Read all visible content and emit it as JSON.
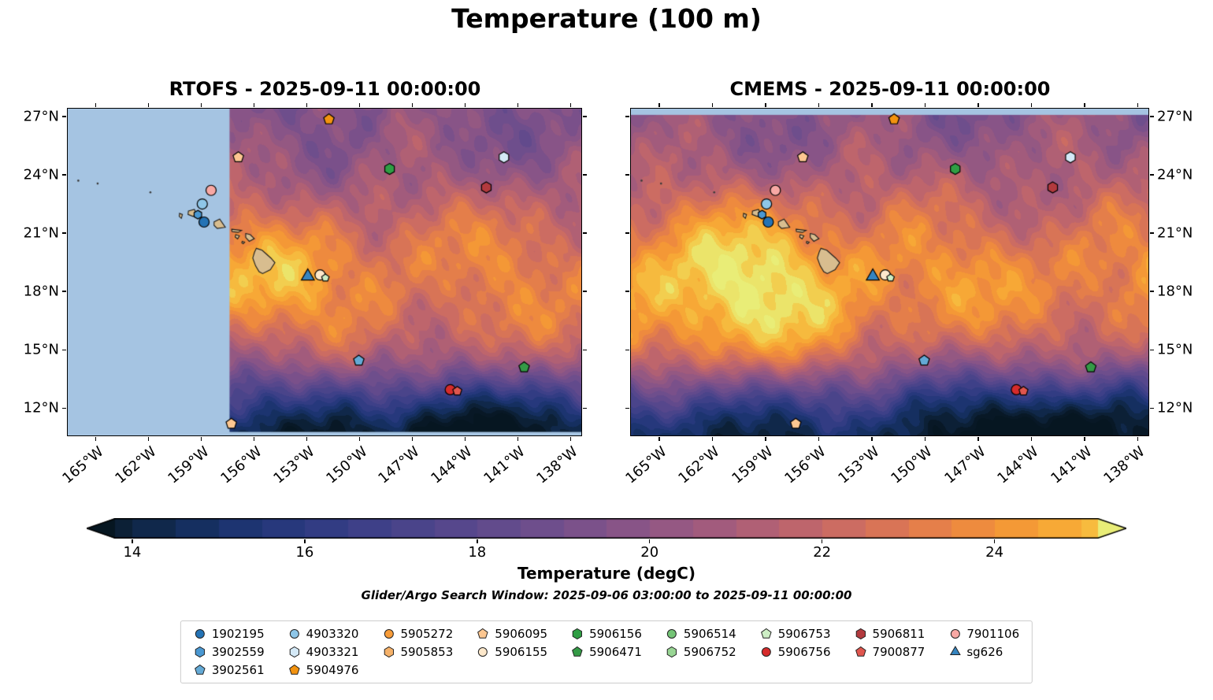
{
  "title": "Temperature (100 m)",
  "panels": [
    {
      "title": "RTOFS - 2025-09-11 00:00:00"
    },
    {
      "title": "CMEMS - 2025-09-11 00:00:00"
    }
  ],
  "axis": {
    "lon_labels": [
      "165°W",
      "162°W",
      "159°W",
      "156°W",
      "153°W",
      "150°W",
      "147°W",
      "144°W",
      "141°W",
      "138°W"
    ],
    "lat_labels": [
      "27°N",
      "24°N",
      "21°N",
      "18°N",
      "15°N",
      "12°N"
    ]
  },
  "colorbar": {
    "label": "Temperature (degC)",
    "tick_labels": [
      "14",
      "16",
      "18",
      "20",
      "22",
      "24"
    ]
  },
  "subtitle": "Glider/Argo Search Window: 2025-09-06 03:00:00 to 2025-09-11 00:00:00",
  "legend": {
    "columns": [
      [
        {
          "label": "1902195",
          "shape": "circle",
          "color": "#2473b5"
        },
        {
          "label": "3902559",
          "shape": "hexagon",
          "color": "#4a98d2"
        },
        {
          "label": "3902561",
          "shape": "pentagon",
          "color": "#64aad6"
        }
      ],
      [
        {
          "label": "4903320",
          "shape": "circle",
          "color": "#8ec6e8"
        },
        {
          "label": "4903321",
          "shape": "hexagon",
          "color": "#d4e9f7"
        },
        {
          "label": "5904976",
          "shape": "pentagon",
          "color": "#f3930f"
        }
      ],
      [
        {
          "label": "5905272",
          "shape": "circle",
          "color": "#f89c38"
        },
        {
          "label": "5905853",
          "shape": "hexagon",
          "color": "#f5b169"
        }
      ],
      [
        {
          "label": "5906095",
          "shape": "pentagon",
          "color": "#fdc791"
        },
        {
          "label": "5906155",
          "shape": "circle",
          "color": "#fde8cb"
        }
      ],
      [
        {
          "label": "5906156",
          "shape": "hexagon",
          "color": "#2f9e44"
        },
        {
          "label": "5906471",
          "shape": "pentagon",
          "color": "#349a46"
        }
      ],
      [
        {
          "label": "5906514",
          "shape": "circle",
          "color": "#74c476"
        },
        {
          "label": "5906752",
          "shape": "hexagon",
          "color": "#98d594"
        }
      ],
      [
        {
          "label": "5906753",
          "shape": "pentagon",
          "color": "#cdeec5"
        },
        {
          "label": "5906756",
          "shape": "circle",
          "color": "#d62b2b"
        }
      ],
      [
        {
          "label": "5906811",
          "shape": "hexagon",
          "color": "#b23a3e"
        },
        {
          "label": "7900877",
          "shape": "pentagon",
          "color": "#e0564e"
        }
      ],
      [
        {
          "label": "7901106",
          "shape": "circle",
          "color": "#f8a8a4"
        },
        {
          "label": "sg626",
          "shape": "triangle",
          "color": "#3584bf"
        }
      ]
    ]
  },
  "chart_data": {
    "type": "heatmap",
    "title": "Temperature (100 m)",
    "xlabel": "longitude",
    "ylabel": "latitude",
    "extent": {
      "lon_min": -166.6,
      "lon_max": -137.4,
      "lat_min": 10.6,
      "lat_max": 27.4
    },
    "lon_tick_values": [
      -165,
      -162,
      -159,
      -156,
      -153,
      -150,
      -147,
      -144,
      -141,
      -138
    ],
    "lat_tick_values": [
      27,
      24,
      21,
      18,
      15,
      12
    ],
    "colorbar_range": [
      13.8,
      25.2
    ],
    "colorbar_tick_values": [
      14,
      16,
      18,
      20,
      22,
      24
    ],
    "level_step": 0.5,
    "lat_profile": [
      [
        10.6,
        14.0
      ],
      [
        11.5,
        15.0
      ],
      [
        12.5,
        16.6
      ],
      [
        13.5,
        18.6
      ],
      [
        14.5,
        20.6
      ],
      [
        15.5,
        21.9
      ],
      [
        16.5,
        22.7
      ],
      [
        18,
        23.3
      ],
      [
        19.5,
        23.3
      ],
      [
        21,
        22.6
      ],
      [
        22.5,
        21.6
      ],
      [
        24,
        20.6
      ],
      [
        25.5,
        20.0
      ],
      [
        27.4,
        19.6
      ]
    ],
    "panels": [
      {
        "seed": 1.3,
        "offset": 0,
        "warm_blob": {
          "a": 1.7,
          "lon": -156.5,
          "lat": 18.3,
          "sx": 4.8,
          "sy": 3.2
        },
        "cold_blob": {
          "a": -1.6,
          "lon": -144.0,
          "lat": 10.4,
          "sx": 6.5,
          "sy": 2.0
        },
        "mask_west_lon": -157.4,
        "mask_bottom_lat": 10.78
      },
      {
        "seed": 2.7,
        "offset": 0.3,
        "warm_blob": {
          "a": 3.0,
          "lon": -160.5,
          "lat": 17.6,
          "sx": 6.5,
          "sy": 4.4
        },
        "cold_blob": {
          "a": -3.2,
          "lon": -143.5,
          "lat": 10.9,
          "sx": 5.0,
          "sy": 2.4
        },
        "mask_top_lat": 27.08
      }
    ],
    "colormap": [
      [
        13.0,
        "#061520"
      ],
      [
        13.5,
        "#0a1c2b"
      ],
      [
        14.0,
        "#0e2440"
      ],
      [
        14.5,
        "#122c55"
      ],
      [
        15.0,
        "#18326a"
      ],
      [
        15.5,
        "#213677"
      ],
      [
        16.0,
        "#2c3a80"
      ],
      [
        16.5,
        "#383e86"
      ],
      [
        17.0,
        "#444289"
      ],
      [
        17.5,
        "#50458b"
      ],
      [
        18.0,
        "#5c498c"
      ],
      [
        18.5,
        "#684c8c"
      ],
      [
        19.0,
        "#744f8b"
      ],
      [
        19.5,
        "#815289"
      ],
      [
        20.0,
        "#8e5685"
      ],
      [
        20.5,
        "#9b5980"
      ],
      [
        21.0,
        "#a95d79"
      ],
      [
        21.5,
        "#b76270"
      ],
      [
        22.0,
        "#c56867"
      ],
      [
        22.5,
        "#d26f5c"
      ],
      [
        23.0,
        "#df7950"
      ],
      [
        23.5,
        "#ea8444"
      ],
      [
        24.0,
        "#f19138"
      ],
      [
        24.5,
        "#f6a033"
      ],
      [
        25.0,
        "#f8b138"
      ],
      [
        25.5,
        "#f5c443"
      ],
      [
        26.0,
        "#eed95b"
      ],
      [
        26.5,
        "#e8ef7a"
      ]
    ],
    "mask_color": "#a5c4e2",
    "land_color": "#d8bd8f",
    "islands": [
      [
        [
          -155.88,
          20.22
        ],
        [
          -155.55,
          20.12
        ],
        [
          -155.05,
          19.72
        ],
        [
          -154.82,
          19.48
        ],
        [
          -155.08,
          19.12
        ],
        [
          -155.52,
          18.92
        ],
        [
          -155.72,
          19.02
        ],
        [
          -155.92,
          19.32
        ],
        [
          -156.08,
          19.72
        ],
        [
          -155.98,
          20.02
        ]
      ],
      [
        [
          -156.48,
          20.98
        ],
        [
          -156.22,
          20.92
        ],
        [
          -155.99,
          20.72
        ],
        [
          -156.28,
          20.58
        ],
        [
          -156.48,
          20.78
        ]
      ],
      [
        [
          -157.28,
          21.2
        ],
        [
          -156.72,
          21.14
        ],
        [
          -156.92,
          21.04
        ],
        [
          -157.26,
          21.08
        ]
      ],
      [
        [
          -157.05,
          20.92
        ],
        [
          -156.84,
          20.86
        ],
        [
          -156.94,
          20.7
        ],
        [
          -157.08,
          20.8
        ]
      ],
      [
        [
          -156.68,
          20.58
        ],
        [
          -156.54,
          20.54
        ],
        [
          -156.62,
          20.46
        ],
        [
          -156.7,
          20.5
        ]
      ],
      [
        [
          -158.28,
          21.58
        ],
        [
          -157.96,
          21.72
        ],
        [
          -157.64,
          21.3
        ],
        [
          -158.1,
          21.24
        ],
        [
          -158.28,
          21.4
        ]
      ],
      [
        [
          -159.74,
          22.14
        ],
        [
          -159.4,
          22.22
        ],
        [
          -159.28,
          22.0
        ],
        [
          -159.48,
          21.86
        ],
        [
          -159.76,
          21.96
        ]
      ],
      [
        [
          -160.24,
          22.02
        ],
        [
          -160.08,
          21.96
        ],
        [
          -160.14,
          21.76
        ],
        [
          -160.26,
          21.86
        ]
      ]
    ],
    "island_dots": [
      [
        -166.0,
        23.7
      ],
      [
        -164.9,
        23.55
      ],
      [
        -161.9,
        23.1
      ]
    ],
    "markers": [
      {
        "shape": "pentagon",
        "color": "#f3930f",
        "lon": -151.75,
        "lat": 26.85,
        "r": 7
      },
      {
        "shape": "pentagon",
        "color": "#fdc791",
        "lon": -156.9,
        "lat": 24.9,
        "r": 7
      },
      {
        "shape": "hexagon",
        "color": "#d4e9f7",
        "lon": -141.8,
        "lat": 24.9,
        "r": 7
      },
      {
        "shape": "hexagon",
        "color": "#2f9e44",
        "lon": -148.3,
        "lat": 24.3,
        "r": 7
      },
      {
        "shape": "hexagon",
        "color": "#b23a3e",
        "lon": -142.8,
        "lat": 23.35,
        "r": 7
      },
      {
        "shape": "circle",
        "color": "#f8a8a4",
        "lon": -158.45,
        "lat": 23.2,
        "r": 6.5
      },
      {
        "shape": "circle",
        "color": "#8ec6e8",
        "lon": -158.95,
        "lat": 22.5,
        "r": 6.5
      },
      {
        "shape": "hexagon",
        "color": "#4a98d2",
        "lon": -159.2,
        "lat": 21.95,
        "r": 5.5
      },
      {
        "shape": "circle",
        "color": "#2473b5",
        "lon": -158.85,
        "lat": 21.57,
        "r": 6.5
      },
      {
        "shape": "triangle",
        "color": "#3584bf",
        "lon": -152.95,
        "lat": 18.78,
        "r": 9.5
      },
      {
        "shape": "circle",
        "color": "#fde8cb",
        "lon": -152.25,
        "lat": 18.85,
        "r": 6.5
      },
      {
        "shape": "pentagon",
        "color": "#cdeec5",
        "lon": -151.95,
        "lat": 18.7,
        "r": 5
      },
      {
        "shape": "pentagon",
        "color": "#64aad6",
        "lon": -150.05,
        "lat": 14.45,
        "r": 7
      },
      {
        "shape": "pentagon",
        "color": "#349a46",
        "lon": -140.65,
        "lat": 14.1,
        "r": 7
      },
      {
        "shape": "circle",
        "color": "#d62b2b",
        "lon": -144.85,
        "lat": 12.95,
        "r": 6.5
      },
      {
        "shape": "pentagon",
        "color": "#e0564e",
        "lon": -144.45,
        "lat": 12.88,
        "r": 6
      },
      {
        "shape": "pentagon",
        "color": "#fdc791",
        "lon": -157.3,
        "lat": 11.2,
        "r": 7
      }
    ]
  }
}
